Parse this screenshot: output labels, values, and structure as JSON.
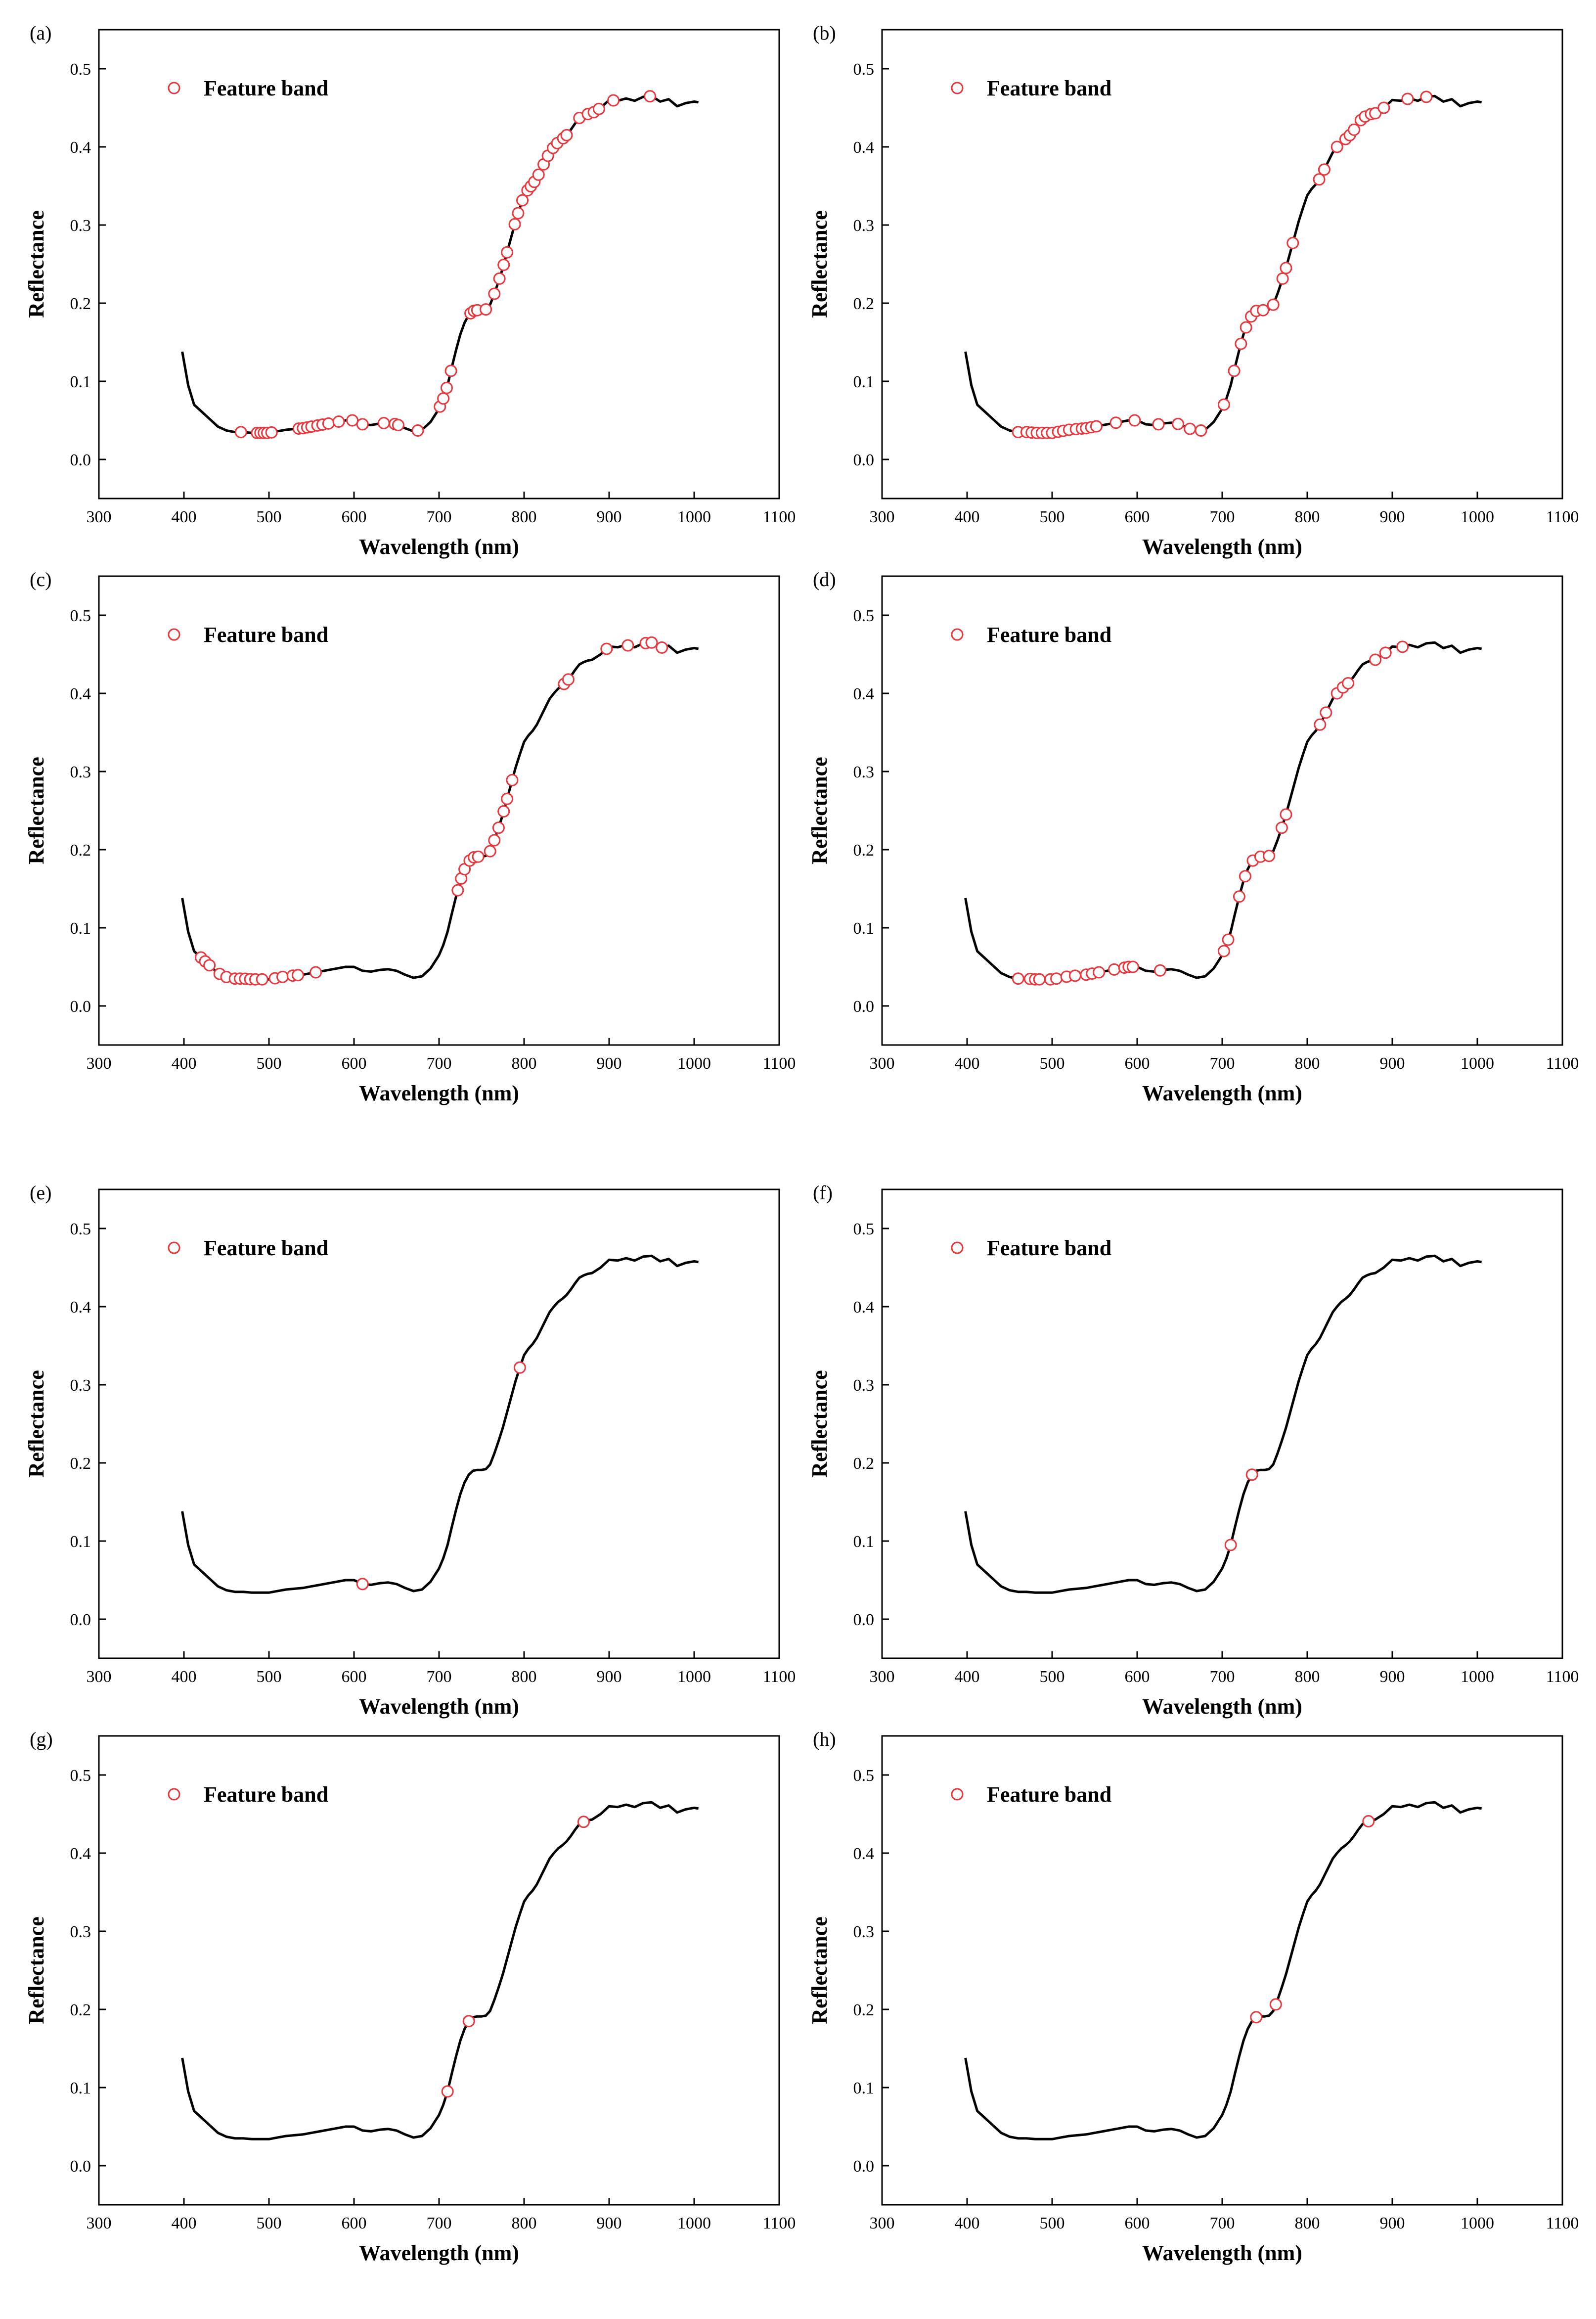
{
  "colors": {
    "marker": "#e8383d",
    "curve": "#000000",
    "frame": "#000000"
  },
  "chart_data": [
    {
      "id": "a",
      "panel_label": "(a)",
      "type": "line",
      "xlabel": "Wavelength (nm)",
      "ylabel": "Reflectance",
      "xlim": [
        300,
        1100
      ],
      "ylim": [
        -0.05,
        0.55
      ],
      "xticks": [
        "300",
        "400",
        "500",
        "600",
        "700",
        "800",
        "900",
        "1000",
        "1100"
      ],
      "yticks": [
        "0.0",
        "0.1",
        "0.2",
        "0.3",
        "0.4",
        "0.5"
      ],
      "legend": "Feature band",
      "legend_loc": "top-left",
      "feature_bands": [
        467,
        486,
        490,
        494,
        498,
        503,
        535,
        540,
        545,
        550,
        557,
        563,
        570,
        582,
        598,
        610,
        635,
        648,
        652,
        675,
        701,
        705,
        709,
        714,
        737,
        741,
        745,
        755,
        765,
        771,
        776,
        780,
        789,
        793,
        798,
        804,
        808,
        812,
        817,
        823,
        828,
        834,
        839,
        846,
        850,
        865,
        875,
        882,
        888,
        905,
        948
      ]
    },
    {
      "id": "b",
      "panel_label": "(b)",
      "type": "line",
      "xlabel": "Wavelength (nm)",
      "ylabel": "Reflectance",
      "xlim": [
        300,
        1100
      ],
      "ylim": [
        -0.05,
        0.55
      ],
      "xticks": [
        "300",
        "400",
        "500",
        "600",
        "700",
        "800",
        "900",
        "1000",
        "1100"
      ],
      "yticks": [
        "0.0",
        "0.1",
        "0.2",
        "0.3",
        "0.4",
        "0.5"
      ],
      "legend": "Feature band",
      "legend_loc": "top-left",
      "feature_bands": [
        460,
        470,
        476,
        482,
        488,
        494,
        500,
        507,
        513,
        520,
        528,
        535,
        540,
        546,
        552,
        575,
        597,
        625,
        648,
        662,
        675,
        702,
        714,
        722,
        728,
        734,
        740,
        748,
        760,
        771,
        775,
        783,
        814,
        820,
        835,
        845,
        850,
        855,
        863,
        868,
        875,
        880,
        890,
        918,
        940
      ]
    },
    {
      "id": "c",
      "panel_label": "(c)",
      "type": "line",
      "xlabel": "Wavelength (nm)",
      "ylabel": "Reflectance",
      "xlim": [
        300,
        1100
      ],
      "ylim": [
        -0.05,
        0.55
      ],
      "xticks": [
        "300",
        "400",
        "500",
        "600",
        "700",
        "800",
        "900",
        "1000",
        "1100"
      ],
      "yticks": [
        "0.0",
        "0.1",
        "0.2",
        "0.3",
        "0.4",
        "0.5"
      ],
      "legend": "Feature band",
      "legend_loc": "top-left",
      "feature_bands": [
        420,
        425,
        430,
        442,
        450,
        460,
        466,
        472,
        478,
        484,
        492,
        507,
        516,
        528,
        534,
        555,
        722,
        726,
        730,
        736,
        741,
        746,
        760,
        765,
        770,
        776,
        780,
        786,
        847,
        852,
        897,
        922,
        943,
        950,
        962
      ]
    },
    {
      "id": "d",
      "panel_label": "(d)",
      "type": "line",
      "xlabel": "Wavelength (nm)",
      "ylabel": "Reflectance",
      "xlim": [
        300,
        1100
      ],
      "ylim": [
        -0.05,
        0.55
      ],
      "xticks": [
        "300",
        "400",
        "500",
        "600",
        "700",
        "800",
        "900",
        "1000",
        "1100"
      ],
      "yticks": [
        "0.0",
        "0.1",
        "0.2",
        "0.3",
        "0.4",
        "0.5"
      ],
      "legend": "Feature band",
      "legend_loc": "top-left",
      "feature_bands": [
        460,
        474,
        480,
        485,
        498,
        505,
        517,
        527,
        540,
        547,
        555,
        573,
        585,
        590,
        595,
        627,
        702,
        707,
        720,
        727,
        736,
        745,
        755,
        770,
        775,
        815,
        822,
        835,
        842,
        848,
        880,
        892,
        912
      ]
    },
    {
      "id": "e",
      "panel_label": "(e)",
      "type": "line",
      "xlabel": "Wavelength (nm)",
      "ylabel": "Reflectance",
      "xlim": [
        300,
        1100
      ],
      "ylim": [
        -0.05,
        0.55
      ],
      "xticks": [
        "300",
        "400",
        "500",
        "600",
        "700",
        "800",
        "900",
        "1000",
        "1100"
      ],
      "yticks": [
        "0.0",
        "0.1",
        "0.2",
        "0.3",
        "0.4",
        "0.5"
      ],
      "legend": "Feature band",
      "legend_loc": "top-left",
      "feature_bands": [
        610,
        795
      ]
    },
    {
      "id": "f",
      "panel_label": "(f)",
      "type": "line",
      "xlabel": "Wavelength (nm)",
      "ylabel": "Reflectance",
      "xlim": [
        300,
        1100
      ],
      "ylim": [
        -0.05,
        0.55
      ],
      "xticks": [
        "300",
        "400",
        "500",
        "600",
        "700",
        "800",
        "900",
        "1000",
        "1100"
      ],
      "yticks": [
        "0.0",
        "0.1",
        "0.2",
        "0.3",
        "0.4",
        "0.5"
      ],
      "legend": "Feature band",
      "legend_loc": "top-left",
      "feature_bands": [
        710,
        735
      ]
    },
    {
      "id": "g",
      "panel_label": "(g)",
      "type": "line",
      "xlabel": "Wavelength (nm)",
      "ylabel": "Reflectance",
      "xlim": [
        300,
        1100
      ],
      "ylim": [
        -0.05,
        0.55
      ],
      "xticks": [
        "300",
        "400",
        "500",
        "600",
        "700",
        "800",
        "900",
        "1000",
        "1100"
      ],
      "yticks": [
        "0.0",
        "0.1",
        "0.2",
        "0.3",
        "0.4",
        "0.5"
      ],
      "legend": "Feature band",
      "legend_loc": "top-left",
      "feature_bands": [
        710,
        735,
        870
      ]
    },
    {
      "id": "h",
      "panel_label": "(h)",
      "type": "line",
      "xlabel": "Wavelength (nm)",
      "ylabel": "Reflectance",
      "xlim": [
        300,
        1100
      ],
      "ylim": [
        -0.05,
        0.55
      ],
      "xticks": [
        "300",
        "400",
        "500",
        "600",
        "700",
        "800",
        "900",
        "1000",
        "1100"
      ],
      "yticks": [
        "0.0",
        "0.1",
        "0.2",
        "0.3",
        "0.4",
        "0.5"
      ],
      "legend": "Feature band",
      "legend_loc": "top-left",
      "feature_bands": [
        740,
        763,
        872
      ]
    }
  ],
  "spectrum": {
    "x": [
      398,
      405,
      412,
      420,
      430,
      440,
      450,
      460,
      470,
      480,
      490,
      500,
      510,
      520,
      530,
      540,
      550,
      560,
      570,
      580,
      590,
      600,
      610,
      620,
      630,
      640,
      650,
      660,
      670,
      680,
      690,
      700,
      705,
      710,
      715,
      720,
      725,
      730,
      735,
      740,
      745,
      750,
      755,
      760,
      765,
      770,
      775,
      780,
      785,
      790,
      795,
      800,
      805,
      810,
      815,
      820,
      825,
      830,
      835,
      840,
      845,
      850,
      855,
      860,
      865,
      870,
      875,
      880,
      890,
      900,
      910,
      920,
      930,
      940,
      950,
      960,
      970,
      980,
      990,
      1000,
      1005
    ],
    "y": [
      0.138,
      0.095,
      0.07,
      0.062,
      0.052,
      0.042,
      0.037,
      0.035,
      0.035,
      0.034,
      0.034,
      0.034,
      0.036,
      0.038,
      0.039,
      0.04,
      0.042,
      0.044,
      0.046,
      0.048,
      0.05,
      0.05,
      0.045,
      0.044,
      0.046,
      0.047,
      0.045,
      0.04,
      0.036,
      0.038,
      0.048,
      0.065,
      0.078,
      0.095,
      0.118,
      0.14,
      0.16,
      0.175,
      0.185,
      0.19,
      0.191,
      0.191,
      0.192,
      0.198,
      0.212,
      0.228,
      0.245,
      0.265,
      0.285,
      0.305,
      0.322,
      0.338,
      0.346,
      0.352,
      0.36,
      0.371,
      0.382,
      0.393,
      0.4,
      0.406,
      0.41,
      0.415,
      0.422,
      0.43,
      0.437,
      0.44,
      0.442,
      0.443,
      0.45,
      0.46,
      0.459,
      0.462,
      0.459,
      0.464,
      0.465,
      0.458,
      0.461,
      0.452,
      0.456,
      0.458,
      0.457
    ]
  }
}
